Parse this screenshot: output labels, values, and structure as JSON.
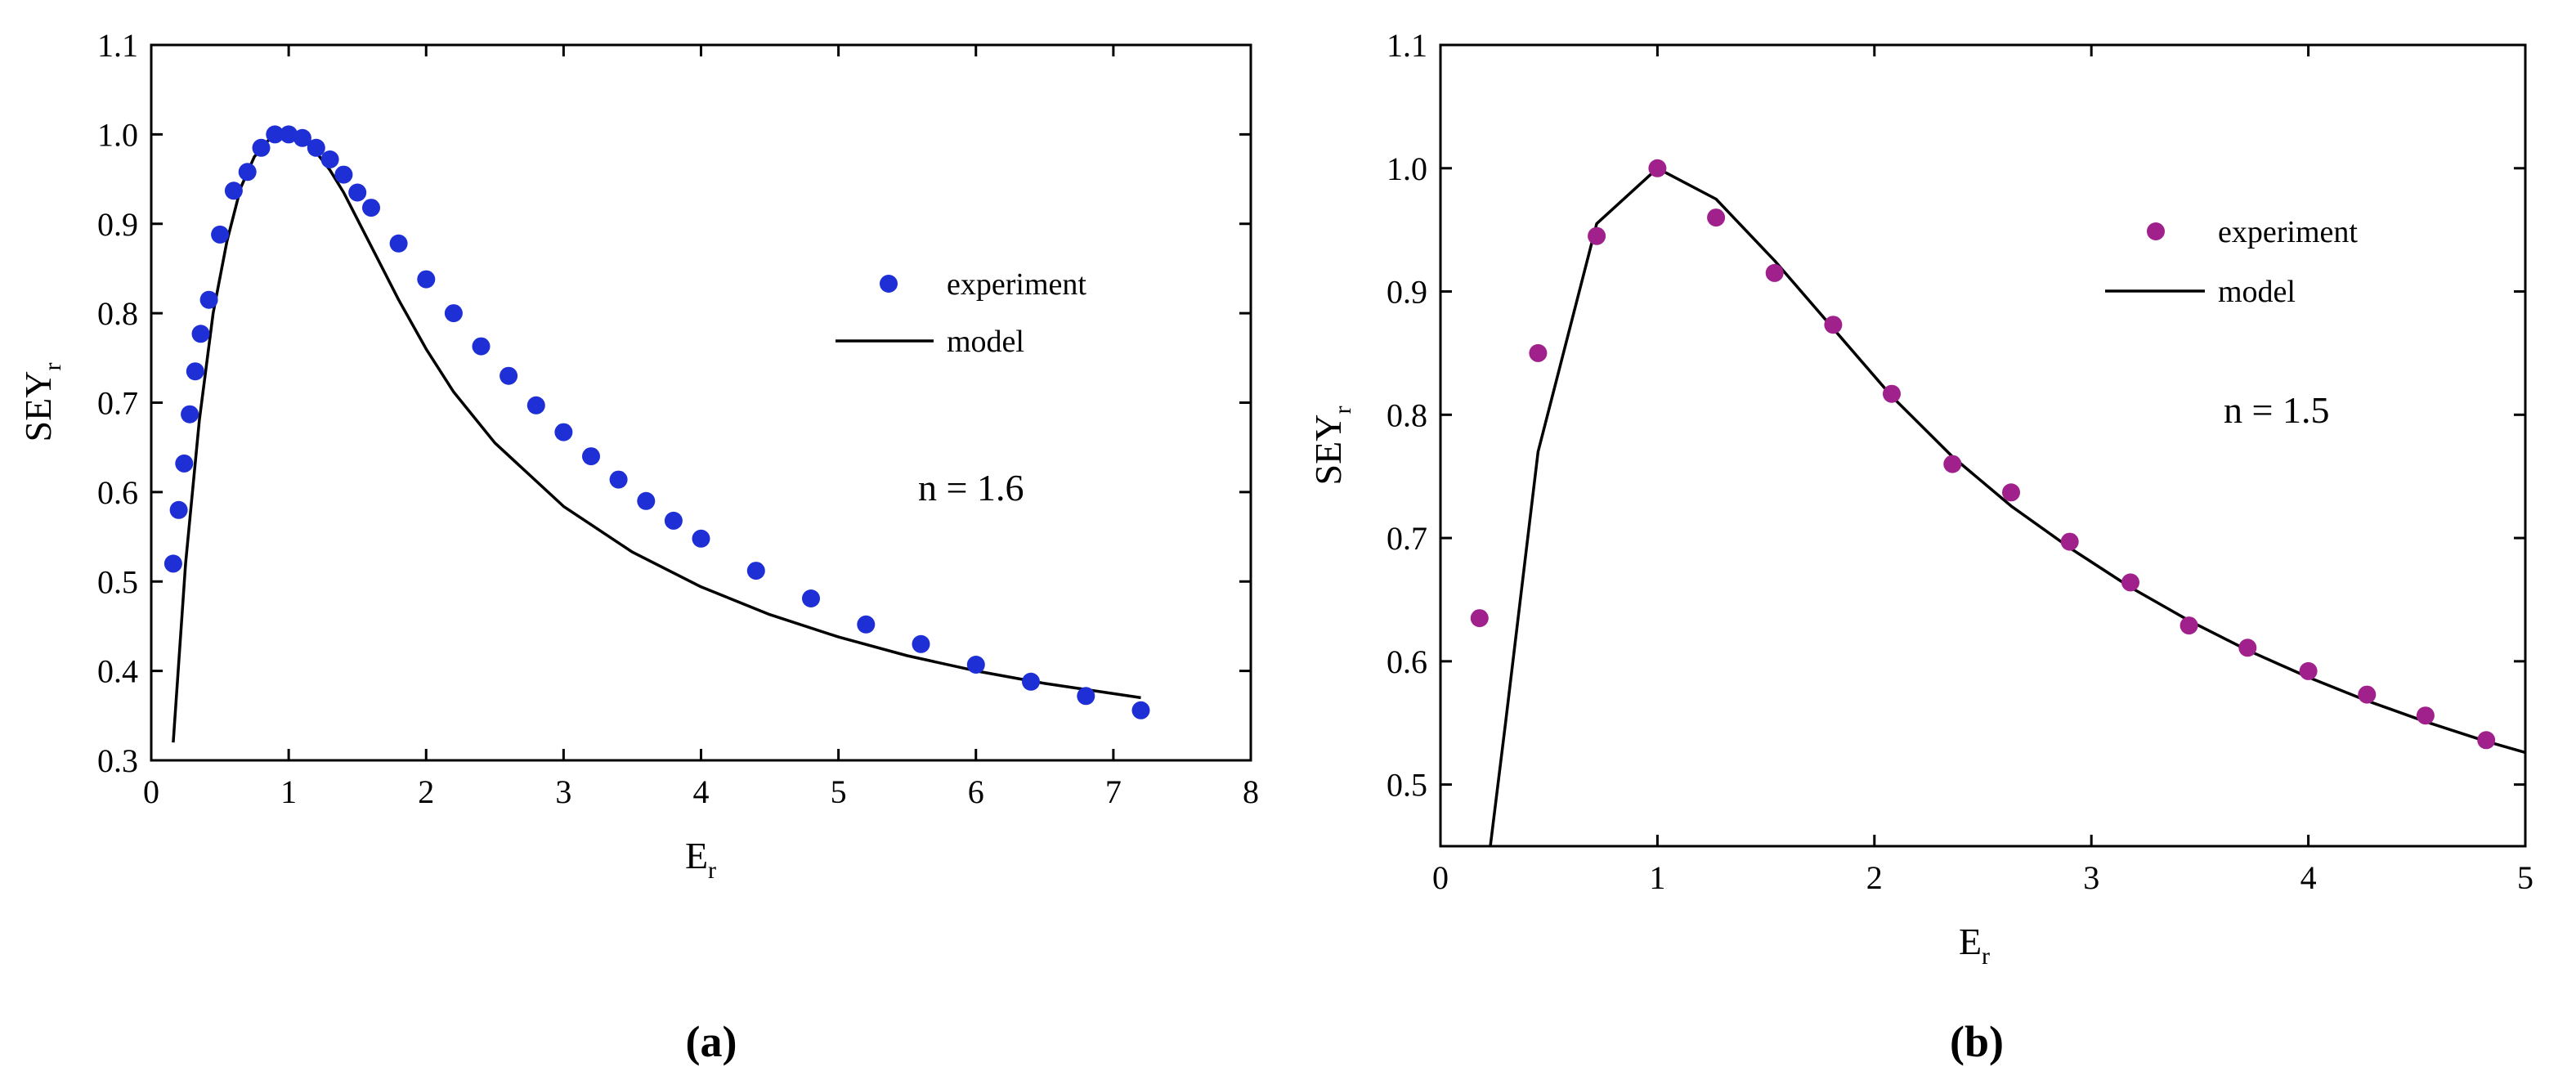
{
  "chart_data": [
    {
      "type": "scatter",
      "panel": "a",
      "caption": "(a)",
      "xlabel": "E",
      "xlabel_sub": "r",
      "ylabel": "SEY",
      "ylabel_sub": "r",
      "xlim": [
        0,
        8
      ],
      "ylim": [
        0.3,
        1.1
      ],
      "xticks": [
        0,
        1,
        2,
        3,
        4,
        5,
        6,
        7,
        8
      ],
      "yticks": [
        0.3,
        0.4,
        0.5,
        0.6,
        0.7,
        0.8,
        0.9,
        1.0,
        1.1
      ],
      "ytick_labels": [
        "0.3",
        "0.4",
        "0.5",
        "0.6",
        "0.7",
        "0.8",
        "0.9",
        "1.0",
        "1.1"
      ],
      "annotation": "n = 1.6",
      "marker_color": "#1f2fd6",
      "series": [
        {
          "name": "experiment",
          "style": "markers",
          "x": [
            0.16,
            0.2,
            0.24,
            0.28,
            0.32,
            0.36,
            0.42,
            0.5,
            0.6,
            0.7,
            0.8,
            0.9,
            1.0,
            1.1,
            1.2,
            1.3,
            1.4,
            1.5,
            1.6,
            1.8,
            2.0,
            2.2,
            2.4,
            2.6,
            2.8,
            3.0,
            3.2,
            3.4,
            3.6,
            3.8,
            4.0,
            4.4,
            4.8,
            5.2,
            5.6,
            6.0,
            6.4,
            6.8,
            7.2
          ],
          "y": [
            0.52,
            0.58,
            0.632,
            0.687,
            0.735,
            0.777,
            0.815,
            0.888,
            0.937,
            0.958,
            0.985,
            1.0,
            1.0,
            0.996,
            0.985,
            0.972,
            0.955,
            0.935,
            0.918,
            0.878,
            0.838,
            0.8,
            0.763,
            0.73,
            0.697,
            0.667,
            0.64,
            0.614,
            0.59,
            0.568,
            0.548,
            0.512,
            0.481,
            0.452,
            0.43,
            0.407,
            0.388,
            0.372,
            0.356
          ]
        },
        {
          "name": "model",
          "style": "line",
          "x": [
            0.16,
            0.25,
            0.35,
            0.45,
            0.55,
            0.65,
            0.75,
            0.85,
            0.95,
            1.0,
            1.1,
            1.2,
            1.3,
            1.4,
            1.5,
            1.6,
            1.8,
            2.0,
            2.2,
            2.5,
            3.0,
            3.5,
            4.0,
            4.5,
            5.0,
            5.5,
            6.0,
            6.5,
            7.2
          ],
          "y": [
            0.32,
            0.52,
            0.68,
            0.8,
            0.88,
            0.94,
            0.975,
            0.993,
            1.0,
            1.0,
            0.995,
            0.98,
            0.96,
            0.935,
            0.905,
            0.875,
            0.815,
            0.76,
            0.712,
            0.655,
            0.584,
            0.533,
            0.494,
            0.463,
            0.438,
            0.417,
            0.4,
            0.386,
            0.37
          ]
        }
      ]
    },
    {
      "type": "scatter",
      "panel": "b",
      "caption": "(b)",
      "xlabel": "E",
      "xlabel_sub": "r",
      "ylabel": "SEY",
      "ylabel_sub": "r",
      "xlim": [
        0,
        5
      ],
      "ylim": [
        0.45,
        1.1
      ],
      "xticks": [
        0,
        1,
        2,
        3,
        4,
        5
      ],
      "yticks": [
        0.5,
        0.6,
        0.7,
        0.8,
        0.9,
        1.0,
        1.1
      ],
      "ytick_labels": [
        "0.5",
        "0.6",
        "0.7",
        "0.8",
        "0.9",
        "1.0",
        "1.1"
      ],
      "annotation": "n = 1.5",
      "marker_color": "#a0208c",
      "series": [
        {
          "name": "experiment",
          "style": "markers",
          "x": [
            0.18,
            0.45,
            0.72,
            1.0,
            1.27,
            1.54,
            1.81,
            2.08,
            2.36,
            2.63,
            2.9,
            3.18,
            3.45,
            3.72,
            4.0,
            4.27,
            4.54,
            4.82
          ],
          "y": [
            0.635,
            0.85,
            0.945,
            1.0,
            0.96,
            0.915,
            0.873,
            0.817,
            0.76,
            0.737,
            0.697,
            0.664,
            0.629,
            0.611,
            0.592,
            0.573,
            0.556,
            0.536
          ]
        },
        {
          "name": "model",
          "style": "line",
          "x": [
            0.23,
            0.3,
            0.45,
            0.72,
            1.0,
            1.27,
            1.54,
            1.81,
            2.08,
            2.36,
            2.63,
            2.9,
            3.18,
            3.45,
            3.72,
            4.0,
            4.27,
            4.54,
            4.82,
            5.0
          ],
          "y": [
            0.45,
            0.55,
            0.77,
            0.955,
            1.0,
            0.975,
            0.925,
            0.87,
            0.815,
            0.766,
            0.726,
            0.692,
            0.66,
            0.633,
            0.609,
            0.587,
            0.568,
            0.551,
            0.535,
            0.526
          ]
        }
      ]
    }
  ]
}
